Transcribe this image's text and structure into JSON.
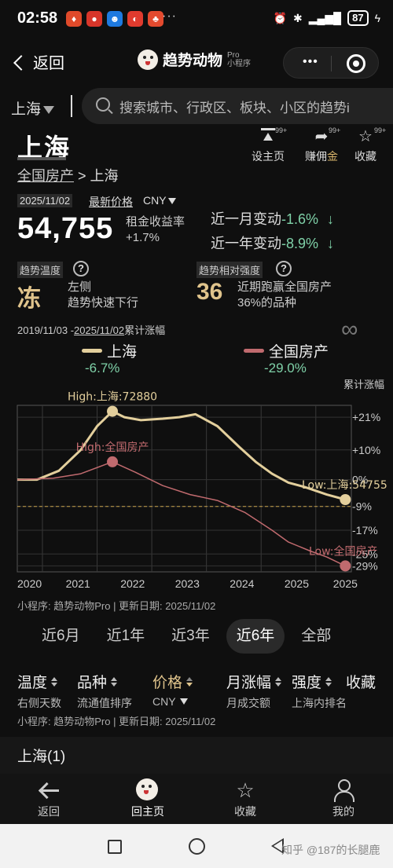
{
  "status_bar": {
    "time": "02:58",
    "battery": "87",
    "dots": "···"
  },
  "nav": {
    "back_label": "返回",
    "mini_program_name": "趋势动物",
    "pro_label": "Pro",
    "mini_program_tag": "小程序",
    "capsule_dots": "•••"
  },
  "search": {
    "city": "上海",
    "placeholder": "搜索城市、行政区、板块、小区的趋势i"
  },
  "region": {
    "title": "上海",
    "breadcrumb_parent": "全国房产",
    "breadcrumb_sep": ">",
    "breadcrumb_current": "上海"
  },
  "actions": [
    {
      "label": "设主页",
      "badge": "99+",
      "icon": "pin-top-icon"
    },
    {
      "label_prefix": "赚佣",
      "label_highlight": "金",
      "badge": "99+",
      "icon": "share-icon"
    },
    {
      "label": "收藏",
      "badge": "99+",
      "icon": "star-icon"
    }
  ],
  "price": {
    "date": "2025/11/02",
    "latest_label": "最新价格",
    "currency": "CNY",
    "value": "54,755",
    "yield_label": "租金收益率",
    "yield_value": "+1.7%",
    "month_change_label": "近一月变动",
    "month_change_value": "-1.6%",
    "year_change_label": "近一年变动",
    "year_change_value": "-8.9%",
    "down_arrow": "↓"
  },
  "metrics": {
    "temp_label": "趋势温度",
    "temp_value": "冻",
    "temp_desc1": "左侧",
    "temp_desc2": "趋势快速下行",
    "strength_label": "趋势相对强度",
    "strength_value": "36",
    "strength_desc1": "近期跑赢全国房产",
    "strength_desc2": "36%的品种",
    "q": "?"
  },
  "chart_header": {
    "range_start": "2019/11/03 -",
    "range_end": "2025/11/02",
    "range_suffix": "累计涨幅",
    "infinity": "∞"
  },
  "chart_data": {
    "type": "line",
    "ylabel": "累计涨幅",
    "x_ticks": [
      "2020",
      "2021",
      "2022",
      "2023",
      "2024",
      "2025",
      "2025"
    ],
    "y_ticks": [
      "+21%",
      "+10%",
      "0%",
      "-9%",
      "-17%",
      "-25%",
      "-29%"
    ],
    "series": [
      {
        "name": "上海",
        "color": "#e3cf9c",
        "final_value": "-6.7%",
        "x": [
          2019.84,
          2020.2,
          2020.6,
          2021.0,
          2021.3,
          2021.58,
          2021.8,
          2022.1,
          2022.5,
          2022.8,
          2023.1,
          2023.5,
          2023.9,
          2024.2,
          2024.5,
          2024.8,
          2025.1,
          2025.5,
          2025.84
        ],
        "values": [
          0,
          0,
          3,
          10,
          18,
          23,
          21,
          20,
          20.5,
          21,
          22,
          18,
          11,
          6,
          2,
          -1,
          -2.5,
          -5,
          -6.7
        ]
      },
      {
        "name": "全国房产",
        "color": "#c06a6e",
        "final_value": "-29.0%",
        "x": [
          2019.84,
          2020.5,
          2021.0,
          2021.58,
          2022.0,
          2022.5,
          2023.0,
          2023.5,
          2024.0,
          2024.5,
          2024.8,
          2025.2,
          2025.5,
          2025.84
        ],
        "values": [
          0,
          0.5,
          2,
          6,
          2.5,
          -2,
          -5,
          -7,
          -11,
          -17,
          -21,
          -24,
          -26,
          -29
        ]
      }
    ],
    "reference_line": -9,
    "annotations": [
      {
        "text": "High:上海:72880",
        "series": "上海",
        "x": 2021.58,
        "value": 23
      },
      {
        "text": "High:全国房产",
        "series": "全国房产",
        "x": 2021.58,
        "value": 6
      },
      {
        "text": "Low:上海:54755",
        "series": "上海",
        "x": 2025.84,
        "value": -6.7
      },
      {
        "text": "Low:全国房产",
        "series": "全国房产",
        "x": 2025.84,
        "value": -29
      }
    ],
    "xlim": [
      2019.84,
      2025.95
    ],
    "ylim": [
      -31,
      25
    ],
    "grid": true
  },
  "footnote": "小程序: 趋势动物Pro | 更新日期: 2025/11/02",
  "periods": [
    {
      "label": "近6月",
      "active": false
    },
    {
      "label": "近1年",
      "active": false
    },
    {
      "label": "近3年",
      "active": false
    },
    {
      "label": "近6年",
      "active": true
    },
    {
      "label": "全部",
      "active": false
    }
  ],
  "sort_columns": [
    {
      "label": "温度",
      "sub": "右侧天数"
    },
    {
      "label": "品种",
      "sub": "流通值排序"
    },
    {
      "label": "价格",
      "sub": "CNY"
    },
    {
      "label": "月涨幅",
      "sub": "月成交额"
    },
    {
      "label": "强度",
      "sub": "上海内排名"
    },
    {
      "label": "收藏",
      "sub": ""
    }
  ],
  "list": {
    "title": "上海(1)"
  },
  "tabbar": [
    {
      "label": "返回",
      "icon": "arrow-left-icon"
    },
    {
      "label": "回主页",
      "icon": "home-avatar-icon"
    },
    {
      "label": "收藏",
      "icon": "star-outline-icon"
    },
    {
      "label": "我的",
      "icon": "person-icon"
    }
  ],
  "watermark": "知乎 @187的长腿鹿",
  "colors": {
    "background": "#0f0f0f",
    "gold": "#e0c48c",
    "green": "#7fd1a8",
    "red_series": "#c06a6e"
  }
}
